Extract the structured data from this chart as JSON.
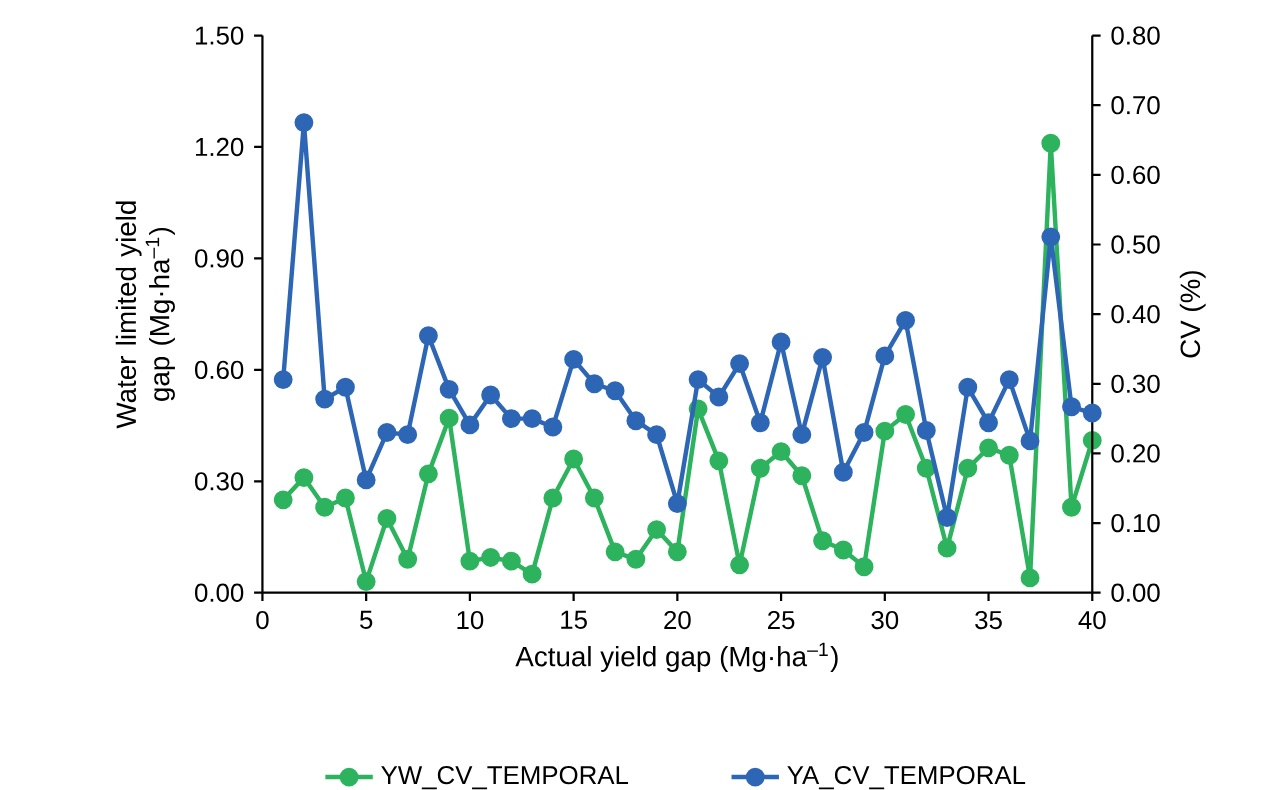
{
  "chart_data": {
    "type": "line",
    "xlabel": "Actual yield gap (Mg·ha$^{–1}$)",
    "ylabel": "Water limited yield gap (Mg·ha$^{–1}$)",
    "y2label": "CV (%)",
    "x": [
      1,
      2,
      3,
      4,
      5,
      6,
      7,
      8,
      9,
      10,
      11,
      12,
      13,
      14,
      15,
      16,
      17,
      18,
      19,
      20,
      21,
      22,
      23,
      24,
      25,
      26,
      27,
      28,
      29,
      30,
      31,
      32,
      33,
      34,
      35,
      36,
      37,
      38,
      39,
      40
    ],
    "series": [
      {
        "name": "YW_CV_TEMPORAL",
        "color": "#2db35d",
        "values": [
          0.25,
          0.31,
          0.23,
          0.255,
          0.03,
          0.2,
          0.09,
          0.32,
          0.47,
          0.085,
          0.095,
          0.085,
          0.05,
          0.255,
          0.36,
          0.255,
          0.11,
          0.09,
          0.17,
          0.11,
          0.495,
          0.355,
          0.075,
          0.335,
          0.38,
          0.315,
          0.14,
          0.115,
          0.07,
          0.435,
          0.48,
          0.335,
          0.12,
          0.335,
          0.39,
          0.37,
          0.04,
          1.21,
          0.23,
          0.41
        ]
      },
      {
        "name": "YA_CV_TEMPORAL",
        "color": "#2e66b6",
        "axis": "y2",
        "values": [
          0.306,
          0.675,
          0.278,
          0.295,
          0.162,
          0.23,
          0.227,
          0.369,
          0.292,
          0.241,
          0.284,
          0.25,
          0.25,
          0.238,
          0.335,
          0.3,
          0.29,
          0.247,
          0.227,
          0.128,
          0.306,
          0.281,
          0.329,
          0.244,
          0.36,
          0.227,
          0.338,
          0.173,
          0.23,
          0.34,
          0.391,
          0.233,
          0.108,
          0.295,
          0.244,
          0.306,
          0.218,
          0.511,
          0.267,
          0.258
        ]
      }
    ],
    "xlim": [
      0,
      40
    ],
    "xticks": [
      0,
      5,
      10,
      15,
      20,
      25,
      30,
      35,
      40
    ],
    "ylim": [
      0,
      1.5
    ],
    "yticks": [
      {
        "value": 0,
        "label": "0.00"
      },
      {
        "value": 0.3,
        "label": "0.30"
      },
      {
        "value": 0.6,
        "label": "0.60"
      },
      {
        "value": 0.9,
        "label": "0.90"
      },
      {
        "value": 1.2,
        "label": "1.20"
      },
      {
        "value": 1.5,
        "label": "1.50"
      }
    ],
    "y2lim": [
      0,
      0.8
    ],
    "y2ticks": [
      {
        "value": 0,
        "label": "0.00"
      },
      {
        "value": 0.1,
        "label": "0.10"
      },
      {
        "value": 0.2,
        "label": "0.20"
      },
      {
        "value": 0.3,
        "label": "0.30"
      },
      {
        "value": 0.4,
        "label": "0.40"
      },
      {
        "value": 0.5,
        "label": "0.50"
      },
      {
        "value": 0.6,
        "label": "0.60"
      },
      {
        "value": 0.7,
        "label": "0.70"
      },
      {
        "value": 0.8,
        "label": "0.80"
      }
    ],
    "grid": false,
    "legend": "bottom",
    "marker": "circle",
    "line_style": "solid"
  }
}
